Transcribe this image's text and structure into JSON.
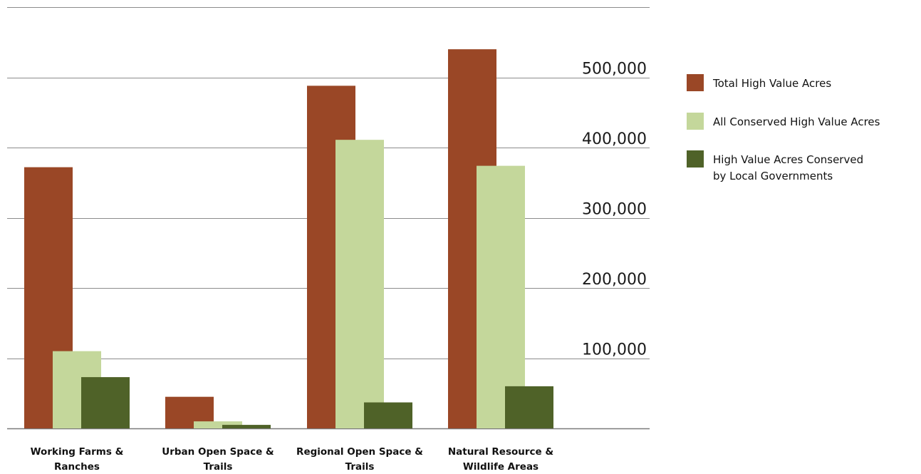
{
  "chart_data": {
    "type": "bar",
    "categories": [
      [
        "Working Farms &",
        "Ranches"
      ],
      [
        "Urban Open Space &",
        "Trails"
      ],
      [
        "Regional Open Space &",
        "Trails"
      ],
      [
        "Natural Resource &",
        "Wildlife Areas"
      ]
    ],
    "series": [
      {
        "name": "Total High Value Acres",
        "legend_lines": [
          "Total High Value Acres"
        ],
        "color": "#9a4726",
        "values": [
          372000,
          45000,
          488000,
          540000
        ]
      },
      {
        "name": "All Conserved High Value Acres",
        "legend_lines": [
          "All Conserved High Value Acres"
        ],
        "color": "#c4d79b",
        "values": [
          110000,
          10000,
          411000,
          374000
        ]
      },
      {
        "name": "High Value Acres Conserved by Local Governments",
        "legend_lines": [
          "High Value Acres Conserved",
          "by Local Governments"
        ],
        "color": "#4f6228",
        "values": [
          73000,
          5000,
          37000,
          60000
        ]
      }
    ],
    "yticks": [
      100000,
      200000,
      300000,
      400000,
      500000
    ],
    "ytick_labels": [
      "100,000",
      "200,000",
      "300,000",
      "400,000",
      "500,000"
    ],
    "ylim": [
      0,
      600000
    ],
    "gridlines": true,
    "legend_position": "right",
    "title": "",
    "xlabel": "",
    "ylabel": ""
  }
}
